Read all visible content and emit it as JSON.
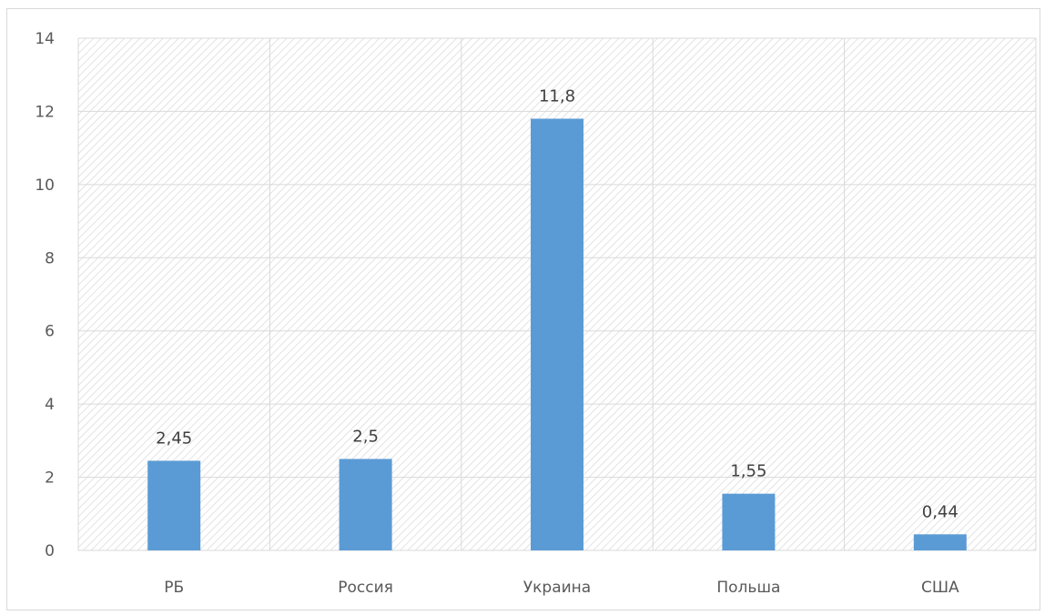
{
  "chart_data": {
    "type": "bar",
    "categories": [
      "РБ",
      "Россия",
      "Украина",
      "Польша",
      "США"
    ],
    "values": [
      2.45,
      2.5,
      11.8,
      1.55,
      0.44
    ],
    "value_labels": [
      "2,45",
      "2,5",
      "11,8",
      "1,55",
      "0,44"
    ],
    "y_ticks": [
      "0",
      "2",
      "4",
      "6",
      "8",
      "10",
      "12",
      "14"
    ],
    "ylim": [
      0,
      14
    ],
    "title": "",
    "xlabel": "",
    "ylabel": "",
    "grid": true,
    "legend": "none",
    "colors": {
      "bar": "#5b9bd5",
      "grid": "#d9d9d9",
      "hatch": "#e3e3e3",
      "axis_text": "#595959",
      "data_label_text": "#404040"
    }
  }
}
